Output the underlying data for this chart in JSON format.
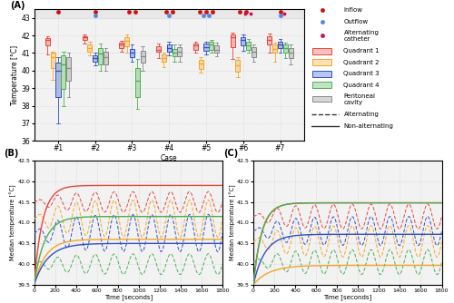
{
  "panel_A": {
    "cases": [
      "#1",
      "#2",
      "#3",
      "#4",
      "#5",
      "#6",
      "#7"
    ],
    "ylim": [
      36,
      43.5
    ],
    "yticks": [
      36,
      37,
      38,
      39,
      40,
      41,
      42,
      43
    ],
    "ylabel": "Temperature [°C]",
    "xlabel": "Case",
    "q1_color": "#e8463c",
    "q2_color": "#f5a623",
    "q3_color": "#3050c8",
    "q4_color": "#4caf50",
    "peri_color": "#888888",
    "inflow_color": "#cc1111",
    "outflow_color": "#5588dd",
    "alt_color": "#cc1155",
    "box_data": {
      "Q1": {
        "#1": [
          40.9,
          41.45,
          41.75,
          41.85,
          41.95
        ],
        "#2": [
          41.55,
          41.75,
          41.9,
          41.95,
          42.05
        ],
        "#3": [
          41.1,
          41.3,
          41.5,
          41.6,
          41.7
        ],
        "#4": [
          40.7,
          41.05,
          41.2,
          41.4,
          41.55
        ],
        "#5": [
          41.0,
          41.2,
          41.45,
          41.55,
          41.65
        ],
        "#6": [
          40.65,
          41.35,
          41.9,
          42.05,
          42.15
        ],
        "#7": [
          41.0,
          41.5,
          41.75,
          41.95,
          42.1
        ]
      },
      "Q2": {
        "#1": [
          39.5,
          40.15,
          40.75,
          41.0,
          41.1
        ],
        "#2": [
          40.85,
          41.1,
          41.3,
          41.5,
          41.65
        ],
        "#3": [
          41.0,
          41.4,
          41.7,
          41.88,
          42.05
        ],
        "#4": [
          40.2,
          40.5,
          40.7,
          40.9,
          41.0
        ],
        "#5": [
          39.9,
          40.1,
          40.4,
          40.6,
          40.75
        ],
        "#6": [
          39.65,
          39.95,
          40.3,
          40.6,
          40.75
        ],
        "#7": [
          40.5,
          41.0,
          41.25,
          41.5,
          41.6
        ]
      },
      "Q3": {
        "#1": [
          37.0,
          38.5,
          40.0,
          40.45,
          40.75
        ],
        "#2": [
          40.3,
          40.5,
          40.7,
          40.85,
          41.0
        ],
        "#3": [
          40.5,
          40.75,
          41.0,
          41.25,
          41.5
        ],
        "#4": [
          40.85,
          41.1,
          41.3,
          41.5,
          41.65
        ],
        "#5": [
          40.9,
          41.15,
          41.35,
          41.55,
          41.65
        ],
        "#6": [
          41.15,
          41.45,
          41.75,
          41.9,
          42.05
        ],
        "#7": [
          41.0,
          41.3,
          41.5,
          41.65,
          41.8
        ]
      },
      "Q4": {
        "#1": [
          38.0,
          38.95,
          40.35,
          40.85,
          41.1
        ],
        "#2": [
          40.0,
          40.35,
          40.95,
          41.3,
          41.55
        ],
        "#3": [
          37.8,
          38.5,
          39.4,
          40.15,
          40.65
        ],
        "#4": [
          40.5,
          40.8,
          41.0,
          41.25,
          41.5
        ],
        "#5": [
          41.0,
          41.2,
          41.5,
          41.65,
          41.75
        ],
        "#6": [
          41.0,
          41.2,
          41.45,
          41.65,
          41.8
        ],
        "#7": [
          40.7,
          41.0,
          41.3,
          41.5,
          41.6
        ]
      },
      "Peri": {
        "#1": [
          38.5,
          39.4,
          40.15,
          40.75,
          41.0
        ],
        "#2": [
          40.0,
          40.35,
          40.75,
          41.1,
          41.3
        ],
        "#3": [
          40.0,
          40.45,
          40.8,
          41.15,
          41.4
        ],
        "#4": [
          40.5,
          40.8,
          41.05,
          41.35,
          41.5
        ],
        "#5": [
          40.8,
          41.0,
          41.2,
          41.45,
          41.6
        ],
        "#6": [
          40.5,
          40.75,
          41.05,
          41.35,
          41.5
        ],
        "#7": [
          40.35,
          40.7,
          41.0,
          41.3,
          41.5
        ]
      }
    },
    "catheter_config": {
      "#1": {
        "inflow": 1,
        "outflow": 0,
        "alt": 0
      },
      "#2": {
        "inflow": 1,
        "outflow": 1,
        "alt": 0
      },
      "#3": {
        "inflow": 2,
        "outflow": 0,
        "alt": 0
      },
      "#4": {
        "inflow": 2,
        "outflow": 1,
        "alt": 0
      },
      "#5": {
        "inflow": 3,
        "outflow": 2,
        "alt": 0
      },
      "#6": {
        "inflow": 2,
        "outflow": 0,
        "alt": 2
      },
      "#7": {
        "inflow": 1,
        "outflow": 1,
        "alt": 1
      }
    }
  },
  "panel_BC": {
    "ylim": [
      39.5,
      42.5
    ],
    "yticks": [
      39.5,
      40.0,
      40.5,
      41.0,
      41.5,
      42.0,
      42.5
    ],
    "xlim": [
      0,
      1800
    ],
    "xticks": [
      0,
      200,
      400,
      600,
      800,
      1000,
      1200,
      1400,
      1600,
      1800
    ],
    "xlabel": "Time [seconds]",
    "ylabel": "Median temperature [°C]",
    "panel_B": {
      "solid": {
        "Q1": {
          "y_end": 41.9,
          "tau": 80,
          "y_start": 39.5
        },
        "Q2": {
          "y_end": 40.6,
          "tau": 110,
          "y_start": 39.5
        },
        "Q3": {
          "y_end": 40.5,
          "tau": 130,
          "y_start": 39.5
        },
        "Q4": {
          "y_end": 41.15,
          "tau": 100,
          "y_start": 39.5
        }
      },
      "dashed": {
        "Q1": {
          "mean": 41.5,
          "amp": 0.25,
          "period": 180
        },
        "Q2": {
          "mean": 41.1,
          "amp": 0.45,
          "period": 180
        },
        "Q3": {
          "mean": 40.75,
          "amp": 0.45,
          "period": 180
        },
        "Q4": {
          "mean": 40.0,
          "amp": 0.25,
          "period": 180
        }
      }
    },
    "panel_C": {
      "solid": {
        "Q1": {
          "y_end": 41.48,
          "tau": 80,
          "y_start": 39.5
        },
        "Q2": {
          "y_end": 39.97,
          "tau": 150,
          "y_start": 39.5
        },
        "Q3": {
          "y_end": 40.72,
          "tau": 110,
          "y_start": 39.5
        },
        "Q4": {
          "y_end": 41.48,
          "tau": 80,
          "y_start": 39.5
        }
      },
      "dashed": {
        "Q1": {
          "mean": 41.15,
          "amp": 0.3,
          "period": 180
        },
        "Q2": {
          "mean": 40.55,
          "amp": 0.38,
          "period": 180
        },
        "Q3": {
          "mean": 40.8,
          "amp": 0.35,
          "period": 180
        },
        "Q4": {
          "mean": 40.05,
          "amp": 0.3,
          "period": 180
        }
      }
    }
  },
  "bg_color": "#f2f2f2",
  "grid_color": "#cccccc",
  "q1_color": "#e8463c",
  "q2_color": "#f5a623",
  "q3_color": "#3050c8",
  "q4_color": "#4caf50"
}
